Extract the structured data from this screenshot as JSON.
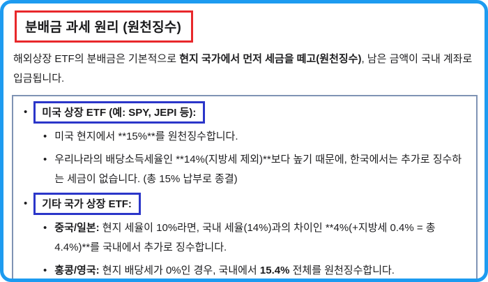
{
  "title": "분배금 과세 원리 (원천징수)",
  "bullet": "•",
  "colors": {
    "frame_border": "#1d9bf0",
    "title_border": "#e8282b",
    "section_label_border": "#2b36c9",
    "list_box_border": "#7f93b4",
    "text": "#1d1d1f"
  },
  "intro": {
    "pre": "해외상장 ETF의 분배금은 기본적으로 ",
    "bold": "현지 국가에서 먼저 세금을 떼고(원천징수)",
    "post": ", 남은 금액이 국내 계좌로 입금됩니다."
  },
  "sections": [
    {
      "label": "미국 상장 ETF (예: SPY, JEPI 등):",
      "items": [
        {
          "segments": [
            {
              "text": "미국 현지에서 **15%**를 원천징수합니다.",
              "bold": false
            }
          ]
        },
        {
          "segments": [
            {
              "text": "우리나라의 배당소득세율인 **14%(지방세 제외)**보다 높기 때문에, 한국에서는 추가로 징수하는 세금이 없습니다. (총 15% 납부로 종결)",
              "bold": false
            }
          ]
        }
      ]
    },
    {
      "label": "기타 국가 상장 ETF:",
      "items": [
        {
          "segments": [
            {
              "text": "중국/일본:",
              "bold": true
            },
            {
              "text": " 현지 세율이 10%라면, 국내 세율(14%)과의 차이인 **4%(+지방세 0.4% = 총 4.4%)**를 국내에서 추가로 징수합니다.",
              "bold": false
            }
          ]
        },
        {
          "segments": [
            {
              "text": "홍콩/영국:",
              "bold": true
            },
            {
              "text": " 현지 배당세가 0%인 경우, 국내에서 ",
              "bold": false
            },
            {
              "text": "15.4%",
              "bold": true
            },
            {
              "text": " 전체를 원천징수합니다.",
              "bold": false
            }
          ]
        }
      ]
    }
  ]
}
